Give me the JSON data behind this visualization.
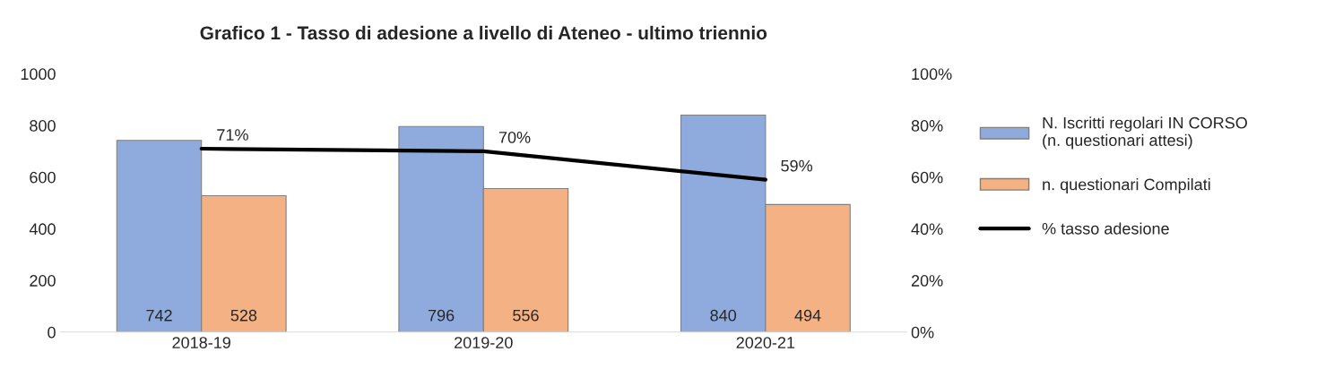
{
  "chart_data": {
    "type": "bar",
    "title": "Grafico 1 - Tasso di adesione a livello di Ateneo - ultimo triennio",
    "categories": [
      "2018-19",
      "2019-20",
      "2020-21"
    ],
    "series": [
      {
        "name": "N. Iscritti regolari IN CORSO\n(n. questionari attesi)",
        "color": "#8faadc",
        "values": [
          742,
          796,
          840
        ]
      },
      {
        "name": "n. questionari Compilati",
        "color": "#f4b183",
        "values": [
          528,
          556,
          494
        ]
      },
      {
        "name": "% tasso adesione",
        "type": "line",
        "axis": "y2",
        "color": "#000000",
        "values": [
          71,
          70,
          59
        ],
        "value_labels": [
          "71%",
          "70%",
          "59%"
        ]
      }
    ],
    "data_labels": true,
    "ylim": [
      0,
      1000
    ],
    "yticks": [
      0,
      200,
      400,
      600,
      800,
      1000
    ],
    "y2lim": [
      0,
      100
    ],
    "y2ticks": [
      {
        "value": 0,
        "label": "0%"
      },
      {
        "value": 20,
        "label": "20%"
      },
      {
        "value": 40,
        "label": "40%"
      },
      {
        "value": 60,
        "label": "60%"
      },
      {
        "value": 80,
        "label": "80%"
      },
      {
        "value": 100,
        "label": "100%"
      }
    ],
    "grid": false,
    "legend": "right"
  }
}
